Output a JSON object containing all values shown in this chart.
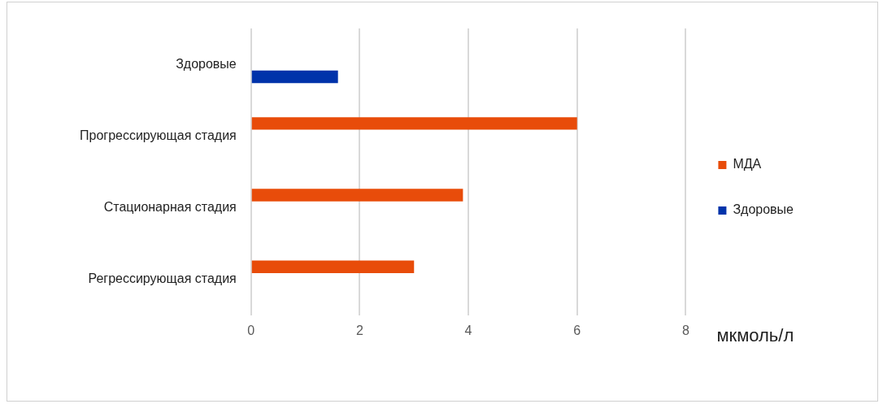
{
  "chart_data": {
    "type": "bar",
    "orientation": "horizontal",
    "categories": [
      "Здоровые",
      "Прогрессирующая стадия",
      "Стационарная стадия",
      "Регрессирующая стадия"
    ],
    "series": [
      {
        "name": "МДА",
        "color": "#e84c0a",
        "values": [
          null,
          6,
          3.9,
          3
        ]
      },
      {
        "name": "Здоровые",
        "color": "#0033aa",
        "values": [
          1.6,
          null,
          null,
          null
        ]
      }
    ],
    "xlabel": "мкмоль/л",
    "xlim": [
      0,
      8
    ],
    "xticks": [
      0,
      2,
      4,
      6,
      8
    ],
    "grid": "x",
    "legend": "right"
  }
}
